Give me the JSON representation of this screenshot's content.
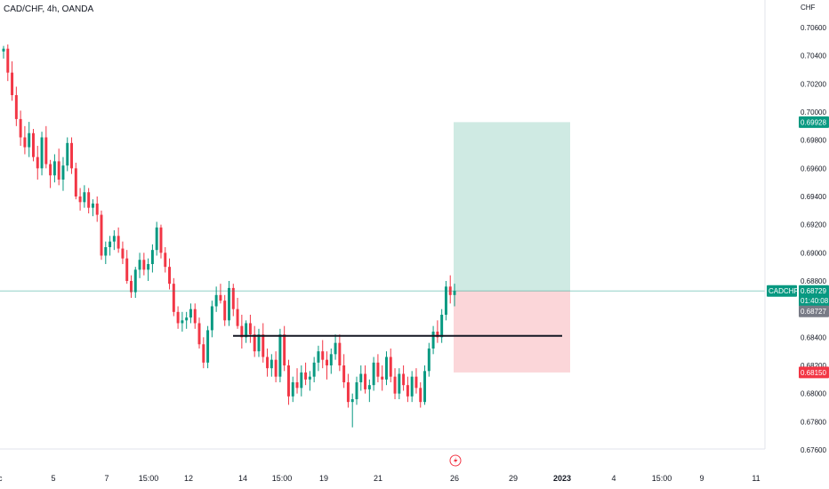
{
  "title": "CAD/CHF, 4h, OANDA",
  "currency": "CHF",
  "colors": {
    "up": "#089981",
    "down": "#f23645",
    "target_zone": "#cfeae3",
    "stop_zone": "#fbd6d9",
    "target_tag": "#089981",
    "stop_tag": "#f23645",
    "price_tag": "#089981",
    "bid_tag": "#787b86",
    "level_line": "#131722"
  },
  "chart_data": {
    "type": "candlestick",
    "symbol": "CADCHF",
    "y_axis_ticks": [
      "0.70600",
      "0.70400",
      "0.70200",
      "0.70000",
      "0.69800",
      "0.69600",
      "0.69400",
      "0.69200",
      "0.69000",
      "0.68800",
      "0.68400",
      "0.68200",
      "0.68000",
      "0.67800",
      "0.67600"
    ],
    "ylim": [
      0.6755,
      0.7075
    ],
    "x_axis_ticks": [
      "5",
      "7",
      "15:00",
      "12",
      "14",
      "15:00",
      "19",
      "21",
      "26",
      "29",
      "2023",
      "4",
      "15:00",
      "9",
      "11"
    ],
    "x_axis_partial_left": "c",
    "last_price": {
      "label": "CADCHF",
      "value": "0.68729",
      "countdown": "01:40:08"
    },
    "bid_price": "0.68727",
    "target_price": "0.69928",
    "stop_price": "0.68150",
    "entry_price": 0.68729,
    "horizontal_level": 0.6841,
    "candles_ohlc": [
      [
        0.7043,
        0.7047,
        0.7038,
        0.7045
      ],
      [
        0.7045,
        0.7048,
        0.7022,
        0.7028
      ],
      [
        0.7028,
        0.7036,
        0.7008,
        0.7012
      ],
      [
        0.7012,
        0.7018,
        0.699,
        0.6995
      ],
      [
        0.6995,
        0.7001,
        0.6976,
        0.6982
      ],
      [
        0.6982,
        0.699,
        0.697,
        0.6975
      ],
      [
        0.6975,
        0.6993,
        0.6968,
        0.6985
      ],
      [
        0.6985,
        0.6988,
        0.6965,
        0.6968
      ],
      [
        0.6968,
        0.6976,
        0.6952,
        0.696
      ],
      [
        0.696,
        0.6986,
        0.6955,
        0.6982
      ],
      [
        0.6982,
        0.699,
        0.696,
        0.6963
      ],
      [
        0.6963,
        0.6966,
        0.6946,
        0.6955
      ],
      [
        0.6955,
        0.697,
        0.695,
        0.6965
      ],
      [
        0.6965,
        0.6974,
        0.6948,
        0.6952
      ],
      [
        0.6952,
        0.6968,
        0.6944,
        0.6962
      ],
      [
        0.6962,
        0.6982,
        0.6958,
        0.6978
      ],
      [
        0.6978,
        0.6982,
        0.6956,
        0.696
      ],
      [
        0.696,
        0.6964,
        0.6938,
        0.694
      ],
      [
        0.694,
        0.6946,
        0.693,
        0.6936
      ],
      [
        0.6936,
        0.6948,
        0.6932,
        0.6943
      ],
      [
        0.6943,
        0.6946,
        0.6928,
        0.6932
      ],
      [
        0.6932,
        0.6938,
        0.6926,
        0.6935
      ],
      [
        0.6935,
        0.694,
        0.6922,
        0.6927
      ],
      [
        0.6927,
        0.693,
        0.6895,
        0.6898
      ],
      [
        0.6898,
        0.6908,
        0.6892,
        0.6904
      ],
      [
        0.6904,
        0.6912,
        0.6898,
        0.6908
      ],
      [
        0.6908,
        0.6916,
        0.6902,
        0.6912
      ],
      [
        0.6912,
        0.6918,
        0.69,
        0.6903
      ],
      [
        0.6903,
        0.6908,
        0.6892,
        0.6896
      ],
      [
        0.6896,
        0.6902,
        0.6878,
        0.688
      ],
      [
        0.688,
        0.6884,
        0.6868,
        0.6872
      ],
      [
        0.6872,
        0.689,
        0.6868,
        0.6888
      ],
      [
        0.6888,
        0.69,
        0.6882,
        0.6895
      ],
      [
        0.6895,
        0.69,
        0.6884,
        0.6888
      ],
      [
        0.6888,
        0.6896,
        0.688,
        0.6892
      ],
      [
        0.6892,
        0.6906,
        0.6886,
        0.6902
      ],
      [
        0.6902,
        0.6922,
        0.6898,
        0.6918
      ],
      [
        0.6918,
        0.692,
        0.6896,
        0.69
      ],
      [
        0.69,
        0.6904,
        0.6886,
        0.689
      ],
      [
        0.689,
        0.6896,
        0.6874,
        0.6878
      ],
      [
        0.6878,
        0.6882,
        0.6855,
        0.6858
      ],
      [
        0.6858,
        0.6862,
        0.6846,
        0.685
      ],
      [
        0.685,
        0.6858,
        0.6844,
        0.6852
      ],
      [
        0.6852,
        0.6858,
        0.6846,
        0.6854
      ],
      [
        0.6854,
        0.6864,
        0.685,
        0.686
      ],
      [
        0.686,
        0.6864,
        0.6846,
        0.685
      ],
      [
        0.685,
        0.6854,
        0.6832,
        0.6835
      ],
      [
        0.6835,
        0.684,
        0.6818,
        0.6822
      ],
      [
        0.6822,
        0.6848,
        0.6818,
        0.6845
      ],
      [
        0.6845,
        0.6866,
        0.684,
        0.6862
      ],
      [
        0.6862,
        0.6876,
        0.6858,
        0.687
      ],
      [
        0.687,
        0.6878,
        0.6864,
        0.6866
      ],
      [
        0.6866,
        0.687,
        0.6848,
        0.6852
      ],
      [
        0.6852,
        0.688,
        0.6848,
        0.6875
      ],
      [
        0.6875,
        0.6878,
        0.6855,
        0.686
      ],
      [
        0.686,
        0.6868,
        0.6846,
        0.6848
      ],
      [
        0.6848,
        0.6856,
        0.6832,
        0.684
      ],
      [
        0.684,
        0.6852,
        0.6836,
        0.685
      ],
      [
        0.685,
        0.6856,
        0.6836,
        0.6842
      ],
      [
        0.6842,
        0.6848,
        0.6826,
        0.683
      ],
      [
        0.683,
        0.6846,
        0.6826,
        0.6842
      ],
      [
        0.6842,
        0.685,
        0.6822,
        0.6826
      ],
      [
        0.6826,
        0.6832,
        0.6812,
        0.6818
      ],
      [
        0.6818,
        0.6828,
        0.6812,
        0.6824
      ],
      [
        0.6824,
        0.683,
        0.6808,
        0.6812
      ],
      [
        0.6812,
        0.6846,
        0.6808,
        0.6842
      ],
      [
        0.6842,
        0.6848,
        0.6816,
        0.682
      ],
      [
        0.682,
        0.6824,
        0.6792,
        0.6798
      ],
      [
        0.6798,
        0.6812,
        0.6794,
        0.6808
      ],
      [
        0.6808,
        0.6818,
        0.68,
        0.6804
      ],
      [
        0.6804,
        0.682,
        0.6798,
        0.6815
      ],
      [
        0.6815,
        0.6822,
        0.6806,
        0.681
      ],
      [
        0.681,
        0.6816,
        0.6802,
        0.6812
      ],
      [
        0.6812,
        0.6826,
        0.6808,
        0.6822
      ],
      [
        0.6822,
        0.6834,
        0.6816,
        0.683
      ],
      [
        0.683,
        0.6838,
        0.6818,
        0.6824
      ],
      [
        0.6824,
        0.683,
        0.681,
        0.682
      ],
      [
        0.682,
        0.6832,
        0.6814,
        0.6828
      ],
      [
        0.6828,
        0.6842,
        0.6824,
        0.6836
      ],
      [
        0.6836,
        0.6842,
        0.6816,
        0.682
      ],
      [
        0.682,
        0.6828,
        0.6804,
        0.6808
      ],
      [
        0.6808,
        0.6814,
        0.679,
        0.6794
      ],
      [
        0.6794,
        0.68,
        0.6776,
        0.6796
      ],
      [
        0.6796,
        0.6812,
        0.6792,
        0.6808
      ],
      [
        0.6808,
        0.682,
        0.6802,
        0.6814
      ],
      [
        0.6814,
        0.682,
        0.68,
        0.6803
      ],
      [
        0.6803,
        0.681,
        0.6794,
        0.6806
      ],
      [
        0.6806,
        0.6826,
        0.6802,
        0.6822
      ],
      [
        0.6822,
        0.6828,
        0.6808,
        0.6812
      ],
      [
        0.6812,
        0.682,
        0.6802,
        0.681
      ],
      [
        0.681,
        0.683,
        0.6806,
        0.6826
      ],
      [
        0.6826,
        0.6832,
        0.6808,
        0.6812
      ],
      [
        0.6812,
        0.6818,
        0.6796,
        0.68
      ],
      [
        0.68,
        0.6818,
        0.6796,
        0.6814
      ],
      [
        0.6814,
        0.682,
        0.6802,
        0.6806
      ],
      [
        0.6806,
        0.6812,
        0.6794,
        0.6798
      ],
      [
        0.6798,
        0.6816,
        0.6794,
        0.6812
      ],
      [
        0.6812,
        0.6818,
        0.68,
        0.6804
      ],
      [
        0.6804,
        0.6808,
        0.679,
        0.6794
      ],
      [
        0.6794,
        0.682,
        0.6792,
        0.6816
      ],
      [
        0.6816,
        0.6836,
        0.6812,
        0.6832
      ],
      [
        0.6832,
        0.6848,
        0.6828,
        0.6844
      ],
      [
        0.6844,
        0.6852,
        0.6836,
        0.684
      ],
      [
        0.684,
        0.686,
        0.6836,
        0.6856
      ],
      [
        0.6856,
        0.688,
        0.6852,
        0.6876
      ],
      [
        0.6876,
        0.6884,
        0.6864,
        0.687
      ],
      [
        0.687,
        0.6878,
        0.6862,
        0.6873
      ]
    ]
  }
}
